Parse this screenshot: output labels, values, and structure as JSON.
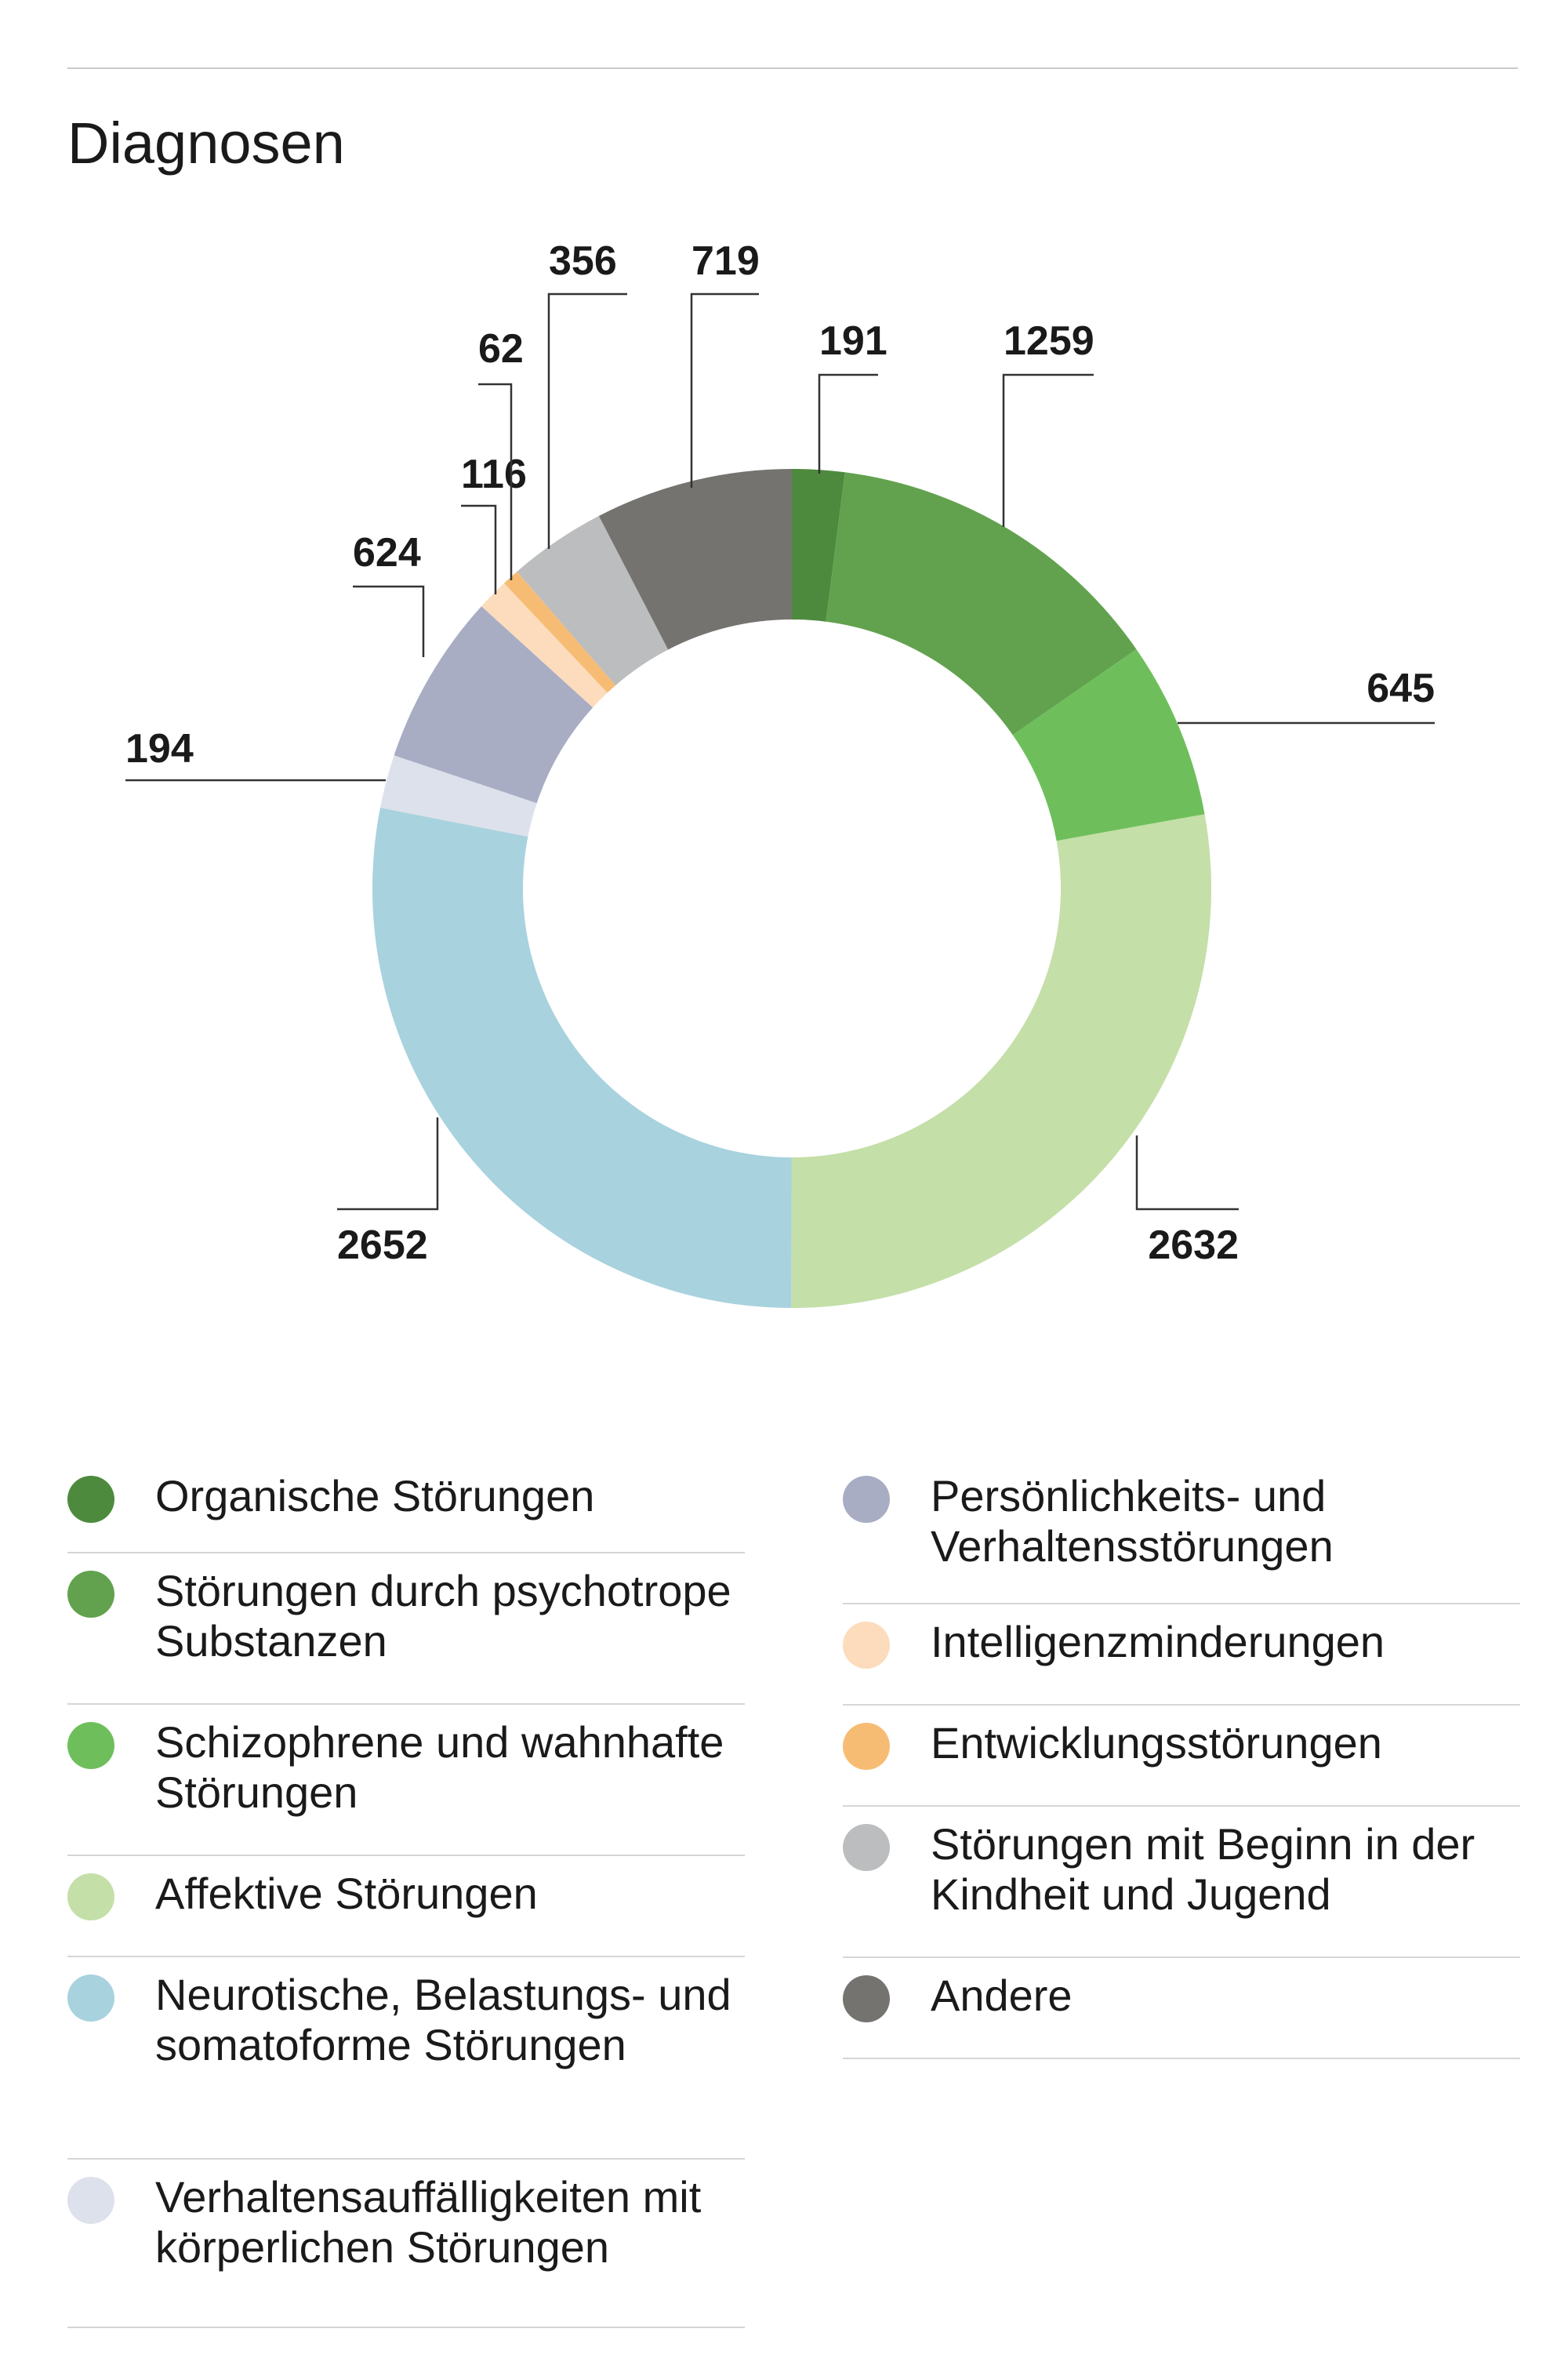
{
  "title": "Diagnosen",
  "chart_data": {
    "type": "pie",
    "donut": true,
    "title": "Diagnosen",
    "categories": [
      "Organische Störungen",
      "Störungen durch psychotrope Substanzen",
      "Schizophrene und wahnhafte Störungen",
      "Affektive Störungen",
      "Neurotische, Belastungs- und somatoforme Störungen",
      "Verhaltensauffälligkeiten mit körperlichen Störungen",
      "Persönlichkeits- und Verhaltensstörungen",
      "Intelligenzminderungen",
      "Entwicklungsstörungen",
      "Störungen mit Beginn in der Kindheit und Jugend",
      "Andere"
    ],
    "values": [
      191,
      1259,
      645,
      2632,
      2652,
      194,
      624,
      116,
      62,
      356,
      719
    ],
    "value_labels": [
      "191",
      "1259",
      "645",
      "2632",
      "2652",
      "194",
      "624",
      "116",
      "62",
      "356",
      "719"
    ],
    "colors": [
      "#4d8a3e",
      "#62a24e",
      "#6ebf5c",
      "#c4dfa8",
      "#a8d2de",
      "#dde1ec",
      "#a8adc4",
      "#fcdcbc",
      "#f7bc74",
      "#bcbdbe",
      "#757370"
    ],
    "start_angle": "12 o'clock",
    "direction": "clockwise",
    "legend_position": "bottom"
  },
  "legend": {
    "left": [
      {
        "label": "Organische Störungen",
        "color": "#4d8a3e"
      },
      {
        "label": "Störungen durch psychotrope Substanzen",
        "color": "#62a24e"
      },
      {
        "label": "Schizophrene und wahnhafte Störungen",
        "color": "#6ebf5c"
      },
      {
        "label": "Affektive Störungen",
        "color": "#c4dfa8"
      },
      {
        "label": "Neurotische, Belastungs- und somatoforme Störungen",
        "color": "#a8d2de"
      },
      {
        "label": "Verhaltensauffälligkeiten mit körperlichen Störungen",
        "color": "#dde1ec"
      }
    ],
    "right": [
      {
        "label": "Persönlichkeits- und Verhaltensstörungen",
        "color": "#a8adc4"
      },
      {
        "label": "Intelligenzminderungen",
        "color": "#fcdcbc"
      },
      {
        "label": "Entwicklungsstörungen",
        "color": "#f7bc74"
      },
      {
        "label": "Störungen mit Beginn in der Kindheit und Jugend",
        "color": "#bcbdbe"
      },
      {
        "label": "Andere",
        "color": "#757370"
      }
    ]
  }
}
